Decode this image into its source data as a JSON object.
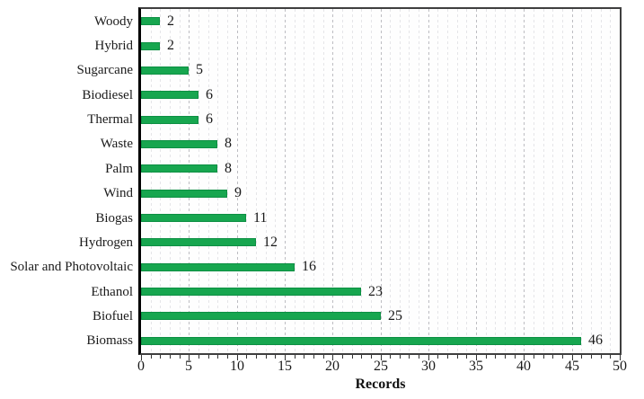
{
  "chart_data": {
    "type": "bar",
    "orientation": "horizontal",
    "title": "",
    "xlabel": "Records",
    "ylabel": "",
    "categories": [
      "Woody",
      "Hybrid",
      "Sugarcane",
      "Biodiesel",
      "Thermal",
      "Waste",
      "Palm",
      "Wind",
      "Biogas",
      "Hydrogen",
      "Solar and Photovoltaic",
      "Ethanol",
      "Biofuel",
      "Biomass"
    ],
    "values": [
      2,
      2,
      5,
      6,
      6,
      8,
      8,
      9,
      11,
      12,
      16,
      23,
      25,
      46
    ],
    "value_labels": [
      "2",
      "2",
      "5",
      "6",
      "6",
      "8",
      "8",
      "9",
      "11",
      "12",
      "16",
      "23",
      "25",
      "46"
    ],
    "xlim": [
      0,
      50
    ],
    "x_tick_step": 5,
    "x_tick_labels": [
      "0",
      "5",
      "10",
      "15",
      "20",
      "25",
      "30",
      "35",
      "40",
      "45",
      "50"
    ],
    "minor_grid_step": 1,
    "grid": true,
    "legend": "none",
    "colors": {
      "bar_fill": "#17a64f",
      "bar_border": "#0d8f43",
      "minor_grid": "#e5e5e8",
      "major_grid": "#bdbdc2",
      "frame_border": "#3f3f3f",
      "y_axis_line": "#000000",
      "tick": "#333333",
      "text": "#1a1a1a"
    }
  }
}
